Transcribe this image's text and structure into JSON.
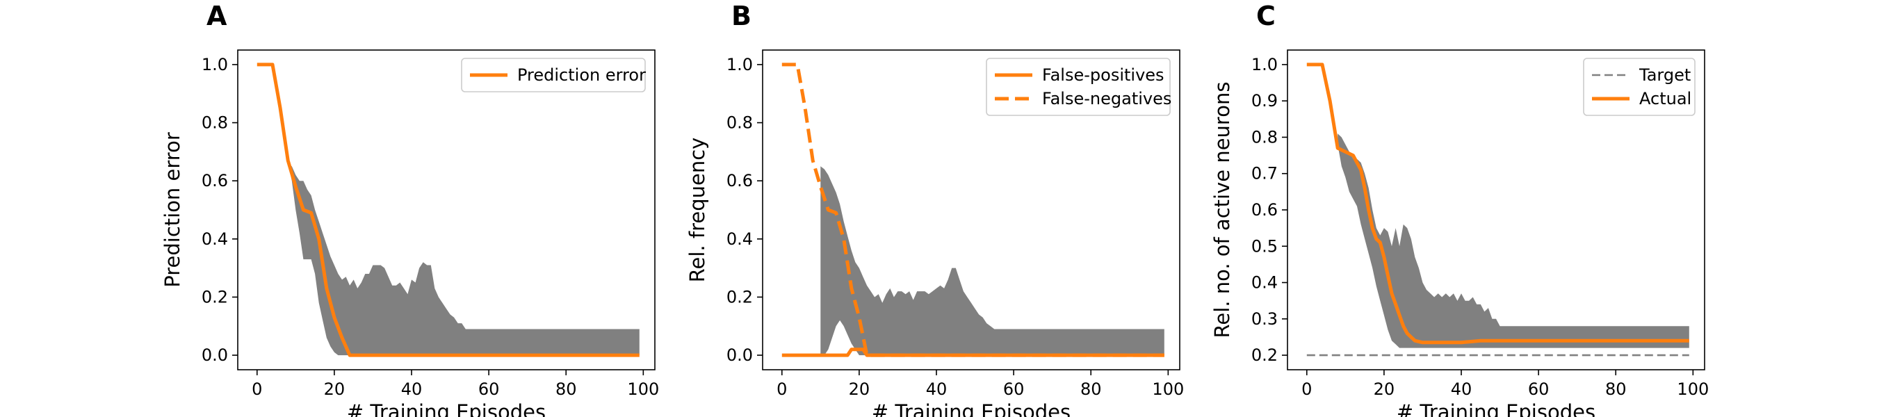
{
  "chart_data": [
    {
      "type": "line",
      "panel": "A",
      "xlabel": "# Training Episodes",
      "ylabel": "Prediction error",
      "xlim": [
        -5,
        103
      ],
      "ylim": [
        -0.05,
        1.05
      ],
      "xticks": [
        0,
        20,
        40,
        60,
        80,
        100
      ],
      "yticks": [
        0.0,
        0.2,
        0.4,
        0.6,
        0.8,
        1.0
      ],
      "xtick_labels": [
        "0",
        "20",
        "40",
        "60",
        "80",
        "100"
      ],
      "ytick_labels": [
        "0.0",
        "0.2",
        "0.4",
        "0.6",
        "0.8",
        "1.0"
      ],
      "legend_position": "top-right",
      "band": {
        "color": "#808080",
        "x": [
          8,
          9,
          10,
          11,
          12,
          13,
          14,
          15,
          16,
          17,
          18,
          19,
          20,
          21,
          22,
          23,
          24,
          25,
          26,
          27,
          28,
          29,
          30,
          31,
          32,
          33,
          34,
          35,
          36,
          37,
          38,
          39,
          40,
          41,
          42,
          43,
          44,
          45,
          46,
          47,
          48,
          49,
          50,
          51,
          52,
          53,
          54,
          55,
          60,
          70,
          80,
          90,
          99
        ],
        "upper": [
          0.66,
          0.65,
          0.62,
          0.6,
          0.6,
          0.57,
          0.55,
          0.5,
          0.46,
          0.42,
          0.38,
          0.34,
          0.31,
          0.28,
          0.26,
          0.27,
          0.24,
          0.26,
          0.23,
          0.25,
          0.28,
          0.28,
          0.31,
          0.31,
          0.31,
          0.3,
          0.27,
          0.24,
          0.24,
          0.25,
          0.23,
          0.21,
          0.26,
          0.25,
          0.3,
          0.32,
          0.31,
          0.31,
          0.23,
          0.2,
          0.18,
          0.16,
          0.14,
          0.13,
          0.11,
          0.11,
          0.09,
          0.09,
          0.09,
          0.09,
          0.09,
          0.09,
          0.09
        ],
        "lower": [
          0.66,
          0.6,
          0.5,
          0.42,
          0.33,
          0.33,
          0.33,
          0.28,
          0.18,
          0.12,
          0.06,
          0.03,
          0.01,
          0.0,
          0.0,
          0.0,
          0.0,
          0.0,
          0.0,
          0.0,
          0.0,
          0.0,
          0.0,
          0.0,
          0.0,
          0.0,
          0.0,
          0.0,
          0.0,
          0.0,
          0.0,
          0.0,
          0.0,
          0.0,
          0.0,
          0.0,
          0.0,
          0.0,
          0.0,
          0.0,
          0.0,
          0.0,
          0.0,
          0.0,
          0.0,
          0.0,
          0.0,
          0.0,
          0.0,
          0.0,
          0.0,
          0.0,
          0.0
        ]
      },
      "series": [
        {
          "name": "Prediction error",
          "color": "#ff7f0e",
          "dashed": false,
          "x": [
            0,
            4,
            6,
            8,
            10,
            12,
            14,
            16,
            18,
            20,
            22,
            24,
            30,
            40,
            60,
            80,
            99
          ],
          "y": [
            1.0,
            1.0,
            0.85,
            0.67,
            0.58,
            0.5,
            0.49,
            0.4,
            0.23,
            0.13,
            0.06,
            0.0,
            0.0,
            0.0,
            0.0,
            0.0,
            0.0
          ]
        }
      ]
    },
    {
      "type": "line",
      "panel": "B",
      "xlabel": "# Training Episodes",
      "ylabel": "Rel. frequency",
      "xlim": [
        -5,
        103
      ],
      "ylim": [
        -0.05,
        1.05
      ],
      "xticks": [
        0,
        20,
        40,
        60,
        80,
        100
      ],
      "yticks": [
        0.0,
        0.2,
        0.4,
        0.6,
        0.8,
        1.0
      ],
      "xtick_labels": [
        "0",
        "20",
        "40",
        "60",
        "80",
        "100"
      ],
      "ytick_labels": [
        "0.0",
        "0.2",
        "0.4",
        "0.6",
        "0.8",
        "1.0"
      ],
      "legend_position": "top-right",
      "band": {
        "color": "#808080",
        "x": [
          10,
          11,
          12,
          13,
          14,
          15,
          16,
          17,
          18,
          19,
          20,
          21,
          22,
          23,
          24,
          25,
          26,
          27,
          28,
          29,
          30,
          31,
          32,
          33,
          34,
          35,
          36,
          37,
          38,
          39,
          40,
          41,
          42,
          43,
          44,
          45,
          46,
          47,
          48,
          49,
          50,
          51,
          52,
          53,
          54,
          55,
          60,
          70,
          80,
          90,
          99
        ],
        "upper": [
          0.65,
          0.64,
          0.62,
          0.59,
          0.56,
          0.52,
          0.46,
          0.41,
          0.36,
          0.32,
          0.3,
          0.27,
          0.24,
          0.22,
          0.2,
          0.21,
          0.18,
          0.21,
          0.23,
          0.2,
          0.22,
          0.22,
          0.21,
          0.22,
          0.19,
          0.22,
          0.22,
          0.22,
          0.21,
          0.22,
          0.23,
          0.24,
          0.23,
          0.26,
          0.3,
          0.3,
          0.26,
          0.22,
          0.2,
          0.18,
          0.16,
          0.14,
          0.13,
          0.11,
          0.1,
          0.09,
          0.09,
          0.09,
          0.09,
          0.09,
          0.09
        ],
        "lower": [
          0.0,
          0.0,
          0.02,
          0.06,
          0.1,
          0.12,
          0.1,
          0.07,
          0.04,
          0.02,
          0.0,
          0.0,
          0.0,
          0.0,
          0.0,
          0.0,
          0.0,
          0.0,
          0.0,
          0.0,
          0.0,
          0.0,
          0.0,
          0.0,
          0.0,
          0.0,
          0.0,
          0.0,
          0.0,
          0.0,
          0.0,
          0.0,
          0.0,
          0.0,
          0.0,
          0.0,
          0.0,
          0.0,
          0.0,
          0.0,
          0.0,
          0.0,
          0.0,
          0.0,
          0.0,
          0.0,
          0.0,
          0.0,
          0.0,
          0.0,
          0.0
        ]
      },
      "series": [
        {
          "name": "False-positives",
          "color": "#ff7f0e",
          "dashed": false,
          "x": [
            0,
            10,
            12,
            14,
            15,
            16,
            17,
            18,
            19,
            20,
            21,
            22,
            30,
            40,
            60,
            80,
            99
          ],
          "y": [
            0.0,
            0.0,
            0.0,
            0.0,
            0.0,
            0.0,
            0.0,
            0.02,
            0.02,
            0.02,
            0.02,
            0.0,
            0.0,
            0.0,
            0.0,
            0.0,
            0.0
          ]
        },
        {
          "name": "False-negatives",
          "color": "#ff7f0e",
          "dashed": true,
          "x": [
            0,
            4,
            6,
            8,
            10,
            12,
            14,
            16,
            18,
            20,
            22,
            30,
            40,
            60,
            80,
            99
          ],
          "y": [
            1.0,
            1.0,
            0.85,
            0.67,
            0.58,
            0.5,
            0.49,
            0.4,
            0.23,
            0.13,
            0.0,
            0.0,
            0.0,
            0.0,
            0.0,
            0.0
          ]
        }
      ]
    },
    {
      "type": "line",
      "panel": "C",
      "xlabel": "# Training Episodes",
      "ylabel": "Rel. no. of active neurons",
      "xlim": [
        -5,
        103
      ],
      "ylim": [
        0.16,
        1.04
      ],
      "xticks": [
        0,
        20,
        40,
        60,
        80,
        100
      ],
      "yticks": [
        0.2,
        0.3,
        0.4,
        0.5,
        0.6,
        0.7,
        0.8,
        0.9,
        1.0
      ],
      "xtick_labels": [
        "0",
        "20",
        "40",
        "60",
        "80",
        "100"
      ],
      "ytick_labels": [
        "0.2",
        "0.3",
        "0.4",
        "0.5",
        "0.6",
        "0.7",
        "0.8",
        "0.9",
        "1.0"
      ],
      "legend_position": "top-right",
      "band": {
        "color": "#808080",
        "x": [
          8,
          9,
          10,
          11,
          12,
          13,
          14,
          15,
          16,
          17,
          18,
          19,
          20,
          21,
          22,
          23,
          24,
          25,
          26,
          27,
          28,
          29,
          30,
          31,
          32,
          33,
          34,
          35,
          36,
          37,
          38,
          39,
          40,
          41,
          42,
          43,
          44,
          45,
          46,
          47,
          48,
          49,
          50,
          51,
          52,
          55,
          60,
          70,
          80,
          90,
          99
        ],
        "upper": [
          0.81,
          0.8,
          0.78,
          0.76,
          0.74,
          0.74,
          0.73,
          0.7,
          0.66,
          0.6,
          0.55,
          0.53,
          0.55,
          0.54,
          0.5,
          0.55,
          0.5,
          0.56,
          0.55,
          0.52,
          0.47,
          0.44,
          0.4,
          0.38,
          0.37,
          0.36,
          0.37,
          0.36,
          0.37,
          0.36,
          0.37,
          0.35,
          0.37,
          0.35,
          0.35,
          0.36,
          0.34,
          0.34,
          0.32,
          0.33,
          0.3,
          0.3,
          0.28,
          0.28,
          0.28,
          0.28,
          0.28,
          0.28,
          0.28,
          0.28,
          0.28
        ],
        "lower": [
          0.78,
          0.72,
          0.69,
          0.65,
          0.63,
          0.61,
          0.56,
          0.52,
          0.48,
          0.44,
          0.39,
          0.35,
          0.31,
          0.27,
          0.24,
          0.23,
          0.22,
          0.22,
          0.22,
          0.22,
          0.22,
          0.22,
          0.22,
          0.22,
          0.22,
          0.22,
          0.22,
          0.22,
          0.22,
          0.22,
          0.22,
          0.22,
          0.22,
          0.22,
          0.22,
          0.22,
          0.22,
          0.22,
          0.22,
          0.22,
          0.22,
          0.22,
          0.22,
          0.22,
          0.22,
          0.22,
          0.22,
          0.22,
          0.22,
          0.22,
          0.22
        ]
      },
      "series": [
        {
          "name": "Target",
          "color": "#808080",
          "dashed": true,
          "x": [
            0,
            99
          ],
          "y": [
            0.2,
            0.2
          ]
        },
        {
          "name": "Actual",
          "color": "#ff7f0e",
          "dashed": false,
          "x": [
            0,
            4,
            6,
            8,
            10,
            12,
            14,
            15,
            16,
            17,
            18,
            19,
            20,
            21,
            22,
            23,
            24,
            25,
            26,
            28,
            30,
            35,
            40,
            45,
            60,
            80,
            99
          ],
          "y": [
            1.0,
            1.0,
            0.9,
            0.77,
            0.76,
            0.75,
            0.71,
            0.66,
            0.6,
            0.55,
            0.52,
            0.51,
            0.47,
            0.42,
            0.37,
            0.34,
            0.31,
            0.28,
            0.26,
            0.24,
            0.235,
            0.235,
            0.235,
            0.24,
            0.24,
            0.24,
            0.24
          ]
        }
      ]
    }
  ]
}
